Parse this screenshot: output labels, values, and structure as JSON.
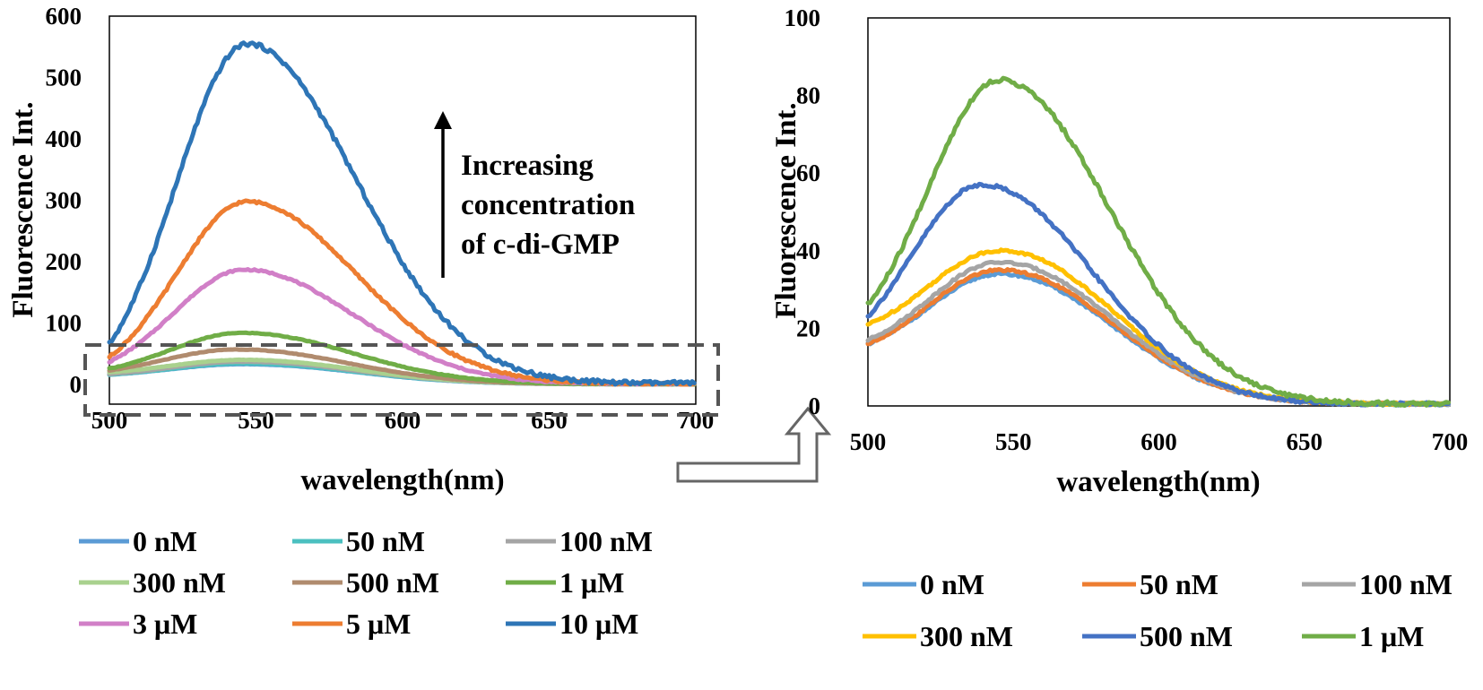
{
  "chart_data": [
    {
      "type": "line",
      "panel": "left",
      "xlabel": "wavelength(nm)",
      "ylabel": "Fluorescence Int.",
      "xlim": [
        500,
        700
      ],
      "ylim": [
        0,
        600
      ],
      "x_ticks": [
        "500",
        "550",
        "600",
        "650",
        "700"
      ],
      "y_ticks": [
        "0",
        "100",
        "200",
        "300",
        "400",
        "500",
        "600"
      ],
      "annotation": [
        "Increasing",
        "concentration",
        "of c-di-GMP"
      ],
      "series": [
        {
          "name": "0 nM",
          "color": "#5b9bd5",
          "peak_x": 545,
          "peak_y": 33,
          "start_y": 16,
          "end_y": 0.5
        },
        {
          "name": "50 nM",
          "color": "#4bc0c0",
          "peak_x": 545,
          "peak_y": 34,
          "start_y": 16,
          "end_y": 0.5
        },
        {
          "name": "100 nM",
          "color": "#a5a5a5",
          "peak_x": 545,
          "peak_y": 37,
          "start_y": 17,
          "end_y": 0.5
        },
        {
          "name": "300 nM",
          "color": "#a9d18e",
          "peak_x": 545,
          "peak_y": 40,
          "start_y": 20,
          "end_y": 0.5
        },
        {
          "name": "500 nM",
          "color": "#b08b6e",
          "peak_x": 543,
          "peak_y": 57,
          "start_y": 23,
          "end_y": 0.5
        },
        {
          "name": "1 μM",
          "color": "#70ad47",
          "peak_x": 545,
          "peak_y": 84,
          "start_y": 26,
          "end_y": 0.5
        },
        {
          "name": "3 μM",
          "color": "#d17fc7",
          "peak_x": 546,
          "peak_y": 187,
          "start_y": 37,
          "end_y": 1
        },
        {
          "name": "5 μM",
          "color": "#ed7d31",
          "peak_x": 547,
          "peak_y": 298,
          "start_y": 45,
          "end_y": 1
        },
        {
          "name": "10 μM",
          "color": "#2e75b6",
          "peak_x": 547,
          "peak_y": 555,
          "start_y": 66,
          "end_y": 2
        }
      ]
    },
    {
      "type": "line",
      "panel": "right",
      "xlabel": "wavelength(nm)",
      "ylabel": "Fluorescence Int.",
      "xlim": [
        500,
        700
      ],
      "ylim": [
        0,
        100
      ],
      "x_ticks": [
        "500",
        "550",
        "600",
        "650",
        "700"
      ],
      "y_ticks": [
        "0",
        "20",
        "40",
        "60",
        "80",
        "100"
      ],
      "series": [
        {
          "name": "0 nM",
          "color": "#5b9bd5",
          "peak_x": 545,
          "peak_y": 34,
          "start_y": 16,
          "end_y": 0.5
        },
        {
          "name": "50 nM",
          "color": "#ed7d31",
          "peak_x": 545,
          "peak_y": 35,
          "start_y": 16,
          "end_y": 0.5
        },
        {
          "name": "100 nM",
          "color": "#a5a5a5",
          "peak_x": 545,
          "peak_y": 37,
          "start_y": 17,
          "end_y": 0.5
        },
        {
          "name": "300 nM",
          "color": "#ffc000",
          "peak_x": 545,
          "peak_y": 40,
          "start_y": 21,
          "end_y": 0.5
        },
        {
          "name": "500 nM",
          "color": "#4472c4",
          "peak_x": 539,
          "peak_y": 57,
          "start_y": 23,
          "end_y": 0.5
        },
        {
          "name": "1 μM",
          "color": "#70ad47",
          "peak_x": 545,
          "peak_y": 84,
          "start_y": 26,
          "end_y": 0.5
        }
      ]
    }
  ]
}
